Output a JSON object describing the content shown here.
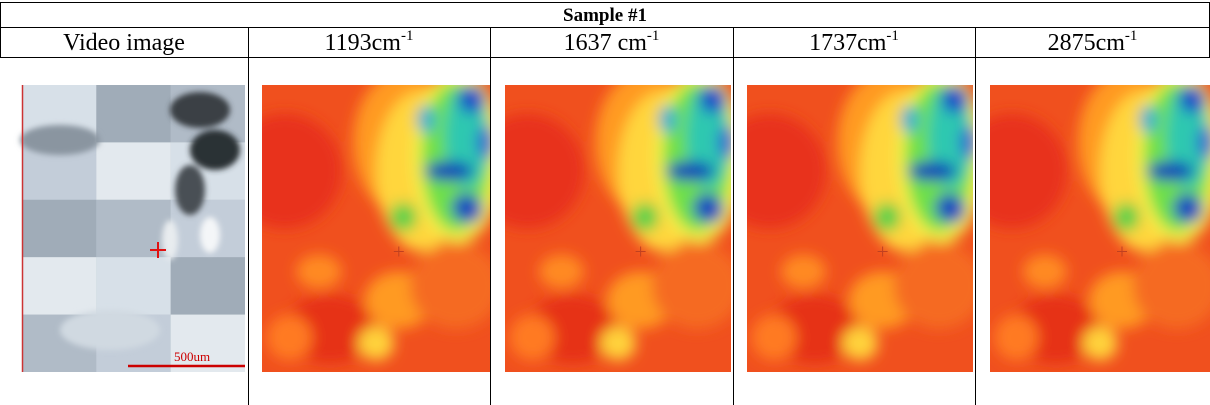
{
  "table": {
    "title": "Sample #1",
    "headers": [
      "Video image",
      {
        "main": "1193cm",
        "sup": "-1"
      },
      {
        "main": "1637 cm",
        "sup": "-1"
      },
      {
        "main": "1737cm",
        "sup": "-1"
      },
      {
        "main": "2875cm",
        "sup": "-1"
      }
    ],
    "scale_label": "500um"
  }
}
